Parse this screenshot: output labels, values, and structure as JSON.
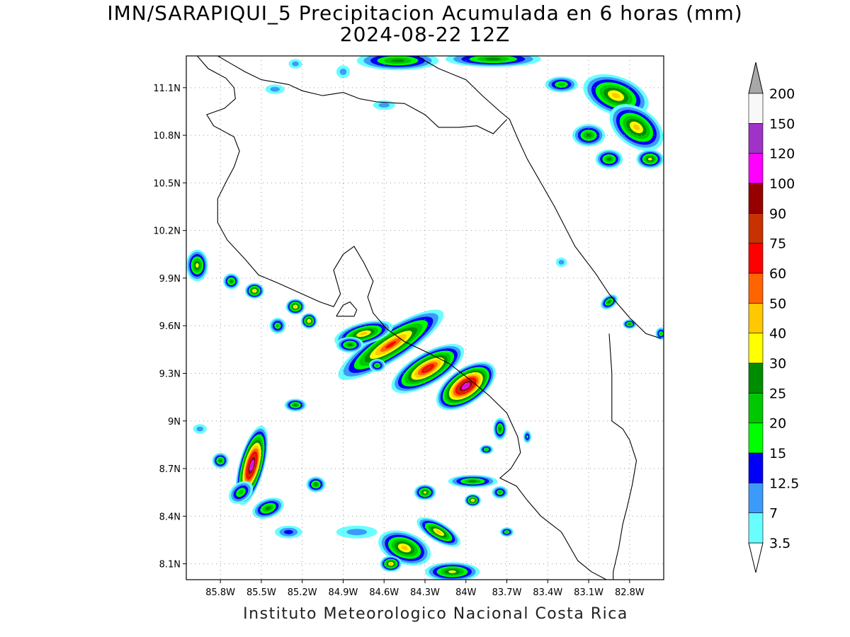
{
  "title": {
    "line1": "IMN/SARAPIQUI_5 Precipitacion Acumulada en 6 horas (mm)",
    "line2": "2024-08-22 12Z"
  },
  "footer": "Instituto Meteorologico Nacional Costa Rica",
  "map": {
    "lon_range": [
      -86.05,
      -82.55
    ],
    "lat_range": [
      8.0,
      11.3
    ],
    "lat_ticks": [
      {
        "value": 11.1,
        "label": "11.1N"
      },
      {
        "value": 10.8,
        "label": "10.8N"
      },
      {
        "value": 10.5,
        "label": "10.5N"
      },
      {
        "value": 10.2,
        "label": "10.2N"
      },
      {
        "value": 9.9,
        "label": "9.9N"
      },
      {
        "value": 9.6,
        "label": "9.6N"
      },
      {
        "value": 9.3,
        "label": "9.3N"
      },
      {
        "value": 9.0,
        "label": "9N"
      },
      {
        "value": 8.7,
        "label": "8.7N"
      },
      {
        "value": 8.4,
        "label": "8.4N"
      },
      {
        "value": 8.1,
        "label": "8.1N"
      }
    ],
    "lon_ticks": [
      {
        "value": -85.8,
        "label": "85.8W"
      },
      {
        "value": -85.5,
        "label": "85.5W"
      },
      {
        "value": -85.2,
        "label": "85.2W"
      },
      {
        "value": -84.9,
        "label": "84.9W"
      },
      {
        "value": -84.6,
        "label": "84.6W"
      },
      {
        "value": -84.3,
        "label": "84.3W"
      },
      {
        "value": -84.0,
        "label": "84W"
      },
      {
        "value": -83.7,
        "label": "83.7W"
      },
      {
        "value": -83.4,
        "label": "83.4W"
      },
      {
        "value": -83.1,
        "label": "83.1W"
      },
      {
        "value": -82.8,
        "label": "82.8W"
      }
    ],
    "coastline": [
      [
        [
          -85.97,
          11.3
        ],
        [
          -85.89,
          11.22
        ],
        [
          -85.76,
          11.16
        ],
        [
          -85.7,
          11.1
        ],
        [
          -85.69,
          11.03
        ],
        [
          -85.77,
          10.97
        ],
        [
          -85.9,
          10.93
        ],
        [
          -85.85,
          10.86
        ],
        [
          -85.7,
          10.79
        ],
        [
          -85.66,
          10.7
        ],
        [
          -85.7,
          10.6
        ],
        [
          -85.75,
          10.52
        ],
        [
          -85.82,
          10.4
        ],
        [
          -85.82,
          10.25
        ],
        [
          -85.75,
          10.14
        ],
        [
          -85.62,
          10.02
        ],
        [
          -85.52,
          9.92
        ],
        [
          -85.38,
          9.87
        ],
        [
          -85.2,
          9.8
        ],
        [
          -85.07,
          9.75
        ],
        [
          -84.97,
          9.72
        ],
        [
          -84.92,
          9.8
        ],
        [
          -84.97,
          9.95
        ],
        [
          -84.9,
          10.05
        ],
        [
          -84.82,
          10.1
        ],
        [
          -84.75,
          10.0
        ],
        [
          -84.68,
          9.88
        ],
        [
          -84.72,
          9.78
        ],
        [
          -84.68,
          9.68
        ],
        [
          -84.58,
          9.58
        ],
        [
          -84.45,
          9.5
        ],
        [
          -84.28,
          9.43
        ],
        [
          -84.12,
          9.36
        ],
        [
          -83.97,
          9.26
        ],
        [
          -83.83,
          9.16
        ],
        [
          -83.7,
          9.05
        ],
        [
          -83.62,
          8.9
        ],
        [
          -83.6,
          8.8
        ],
        [
          -83.67,
          8.7
        ],
        [
          -83.75,
          8.64
        ],
        [
          -83.63,
          8.59
        ],
        [
          -83.55,
          8.5
        ],
        [
          -83.45,
          8.4
        ],
        [
          -83.3,
          8.3
        ],
        [
          -83.18,
          8.12
        ],
        [
          -83.08,
          8.05
        ],
        [
          -82.97,
          8.0
        ]
      ],
      [
        [
          -84.36,
          11.3
        ],
        [
          -84.2,
          11.22
        ],
        [
          -84.0,
          11.15
        ],
        [
          -83.88,
          11.05
        ],
        [
          -83.75,
          10.95
        ],
        [
          -83.68,
          10.9
        ],
        [
          -83.62,
          10.78
        ],
        [
          -83.55,
          10.65
        ],
        [
          -83.45,
          10.5
        ],
        [
          -83.35,
          10.35
        ],
        [
          -83.2,
          10.1
        ],
        [
          -83.05,
          9.93
        ],
        [
          -82.95,
          9.8
        ],
        [
          -82.8,
          9.65
        ],
        [
          -82.68,
          9.55
        ],
        [
          -82.57,
          9.52
        ]
      ],
      [
        [
          -84.95,
          9.66
        ],
        [
          -84.9,
          9.73
        ],
        [
          -84.85,
          9.75
        ],
        [
          -84.8,
          9.7
        ],
        [
          -84.82,
          9.66
        ],
        [
          -84.95,
          9.66
        ]
      ],
      [
        [
          -85.82,
          11.3
        ],
        [
          -85.72,
          11.25
        ],
        [
          -85.62,
          11.2
        ],
        [
          -85.5,
          11.15
        ],
        [
          -85.3,
          11.12
        ],
        [
          -85.2,
          11.08
        ],
        [
          -85.05,
          11.05
        ],
        [
          -84.9,
          11.07
        ],
        [
          -84.78,
          11.03
        ],
        [
          -84.65,
          11.01
        ],
        [
          -84.45,
          11.0
        ],
        [
          -84.3,
          10.93
        ],
        [
          -84.2,
          10.85
        ],
        [
          -84.05,
          10.85
        ],
        [
          -83.92,
          10.86
        ],
        [
          -83.8,
          10.81
        ],
        [
          -83.7,
          10.9
        ]
      ],
      [
        [
          -82.95,
          9.55
        ],
        [
          -82.93,
          9.3
        ],
        [
          -82.93,
          9.1
        ],
        [
          -82.93,
          9.0
        ],
        [
          -82.85,
          8.95
        ],
        [
          -82.8,
          8.88
        ],
        [
          -82.75,
          8.75
        ],
        [
          -82.78,
          8.6
        ],
        [
          -82.82,
          8.45
        ],
        [
          -82.85,
          8.35
        ],
        [
          -82.88,
          8.2
        ],
        [
          -82.92,
          8.05
        ],
        [
          -82.92,
          8.0
        ]
      ]
    ],
    "precip_cells": [
      {
        "lon": -84.55,
        "lat": 9.48,
        "rx": 0.45,
        "ry": 0.1,
        "rot": 32,
        "max": 60
      },
      {
        "lon": -84.28,
        "lat": 9.33,
        "rx": 0.3,
        "ry": 0.1,
        "rot": 30,
        "max": 75
      },
      {
        "lon": -84.0,
        "lat": 9.22,
        "rx": 0.25,
        "ry": 0.11,
        "rot": 35,
        "max": 120
      },
      {
        "lon": -84.75,
        "lat": 9.55,
        "rx": 0.22,
        "ry": 0.07,
        "rot": 15,
        "max": 40
      },
      {
        "lon": -84.85,
        "lat": 9.48,
        "rx": 0.1,
        "ry": 0.05,
        "rot": 0,
        "max": 25
      },
      {
        "lon": -84.65,
        "lat": 9.35,
        "rx": 0.06,
        "ry": 0.04,
        "rot": 0,
        "max": 20
      },
      {
        "lon": -85.57,
        "lat": 8.72,
        "rx": 0.3,
        "ry": 0.08,
        "rot": 75,
        "max": 120
      },
      {
        "lon": -85.45,
        "lat": 8.45,
        "rx": 0.12,
        "ry": 0.06,
        "rot": 20,
        "max": 25
      },
      {
        "lon": -85.8,
        "lat": 8.75,
        "rx": 0.06,
        "ry": 0.05,
        "rot": 0,
        "max": 25
      },
      {
        "lon": -85.65,
        "lat": 8.55,
        "rx": 0.1,
        "ry": 0.06,
        "rot": 40,
        "max": 20
      },
      {
        "lon": -85.25,
        "lat": 9.1,
        "rx": 0.08,
        "ry": 0.04,
        "rot": 0,
        "max": 25
      },
      {
        "lon": -85.1,
        "lat": 8.6,
        "rx": 0.07,
        "ry": 0.05,
        "rot": 0,
        "max": 25
      },
      {
        "lon": -85.97,
        "lat": 9.98,
        "rx": 0.08,
        "ry": 0.1,
        "rot": 0,
        "max": 30
      },
      {
        "lon": -85.72,
        "lat": 9.88,
        "rx": 0.06,
        "ry": 0.05,
        "rot": 0,
        "max": 25
      },
      {
        "lon": -85.55,
        "lat": 9.82,
        "rx": 0.07,
        "ry": 0.05,
        "rot": 0,
        "max": 40
      },
      {
        "lon": -85.25,
        "lat": 9.72,
        "rx": 0.07,
        "ry": 0.05,
        "rot": 0,
        "max": 40
      },
      {
        "lon": -85.15,
        "lat": 9.63,
        "rx": 0.06,
        "ry": 0.05,
        "rot": 0,
        "max": 40
      },
      {
        "lon": -85.38,
        "lat": 9.6,
        "rx": 0.06,
        "ry": 0.05,
        "rot": 0,
        "max": 20
      },
      {
        "lon": -84.45,
        "lat": 8.2,
        "rx": 0.2,
        "ry": 0.1,
        "rot": -20,
        "max": 40
      },
      {
        "lon": -84.2,
        "lat": 8.3,
        "rx": 0.18,
        "ry": 0.06,
        "rot": -30,
        "max": 40
      },
      {
        "lon": -84.1,
        "lat": 8.05,
        "rx": 0.2,
        "ry": 0.06,
        "rot": 0,
        "max": 30
      },
      {
        "lon": -84.3,
        "lat": 8.55,
        "rx": 0.08,
        "ry": 0.05,
        "rot": 0,
        "max": 30
      },
      {
        "lon": -83.95,
        "lat": 8.62,
        "rx": 0.18,
        "ry": 0.04,
        "rot": 0,
        "max": 25
      },
      {
        "lon": -83.95,
        "lat": 8.5,
        "rx": 0.06,
        "ry": 0.04,
        "rot": 0,
        "max": 40
      },
      {
        "lon": -84.55,
        "lat": 8.1,
        "rx": 0.08,
        "ry": 0.05,
        "rot": 0,
        "max": 40
      },
      {
        "lon": -83.7,
        "lat": 8.3,
        "rx": 0.05,
        "ry": 0.03,
        "rot": 0,
        "max": 20
      },
      {
        "lon": -83.75,
        "lat": 8.55,
        "rx": 0.06,
        "ry": 0.04,
        "rot": 0,
        "max": 20
      },
      {
        "lon": -83.75,
        "lat": 8.95,
        "rx": 0.05,
        "ry": 0.07,
        "rot": 0,
        "max": 25
      },
      {
        "lon": -83.55,
        "lat": 8.9,
        "rx": 0.03,
        "ry": 0.04,
        "rot": 0,
        "max": 15
      },
      {
        "lon": -83.85,
        "lat": 8.82,
        "rx": 0.05,
        "ry": 0.03,
        "rot": 0,
        "max": 20
      },
      {
        "lon": -82.9,
        "lat": 11.05,
        "rx": 0.25,
        "ry": 0.12,
        "rot": -20,
        "max": 40
      },
      {
        "lon": -82.75,
        "lat": 10.85,
        "rx": 0.22,
        "ry": 0.12,
        "rot": -35,
        "max": 40
      },
      {
        "lon": -83.1,
        "lat": 10.8,
        "rx": 0.12,
        "ry": 0.07,
        "rot": 0,
        "max": 25
      },
      {
        "lon": -82.95,
        "lat": 10.65,
        "rx": 0.1,
        "ry": 0.06,
        "rot": 0,
        "max": 25
      },
      {
        "lon": -82.65,
        "lat": 10.65,
        "rx": 0.1,
        "ry": 0.06,
        "rot": 0,
        "max": 30
      },
      {
        "lon": -83.3,
        "lat": 11.12,
        "rx": 0.12,
        "ry": 0.05,
        "rot": 0,
        "max": 20
      },
      {
        "lon": -84.5,
        "lat": 11.27,
        "rx": 0.3,
        "ry": 0.06,
        "rot": 0,
        "max": 25
      },
      {
        "lon": -83.8,
        "lat": 11.28,
        "rx": 0.35,
        "ry": 0.05,
        "rot": 0,
        "max": 25
      },
      {
        "lon": -82.95,
        "lat": 9.75,
        "rx": 0.07,
        "ry": 0.04,
        "rot": 35,
        "max": 25
      },
      {
        "lon": -82.8,
        "lat": 9.61,
        "rx": 0.05,
        "ry": 0.03,
        "rot": 0,
        "max": 25
      },
      {
        "lon": -82.57,
        "lat": 9.55,
        "rx": 0.04,
        "ry": 0.04,
        "rot": 0,
        "max": 20
      },
      {
        "lon": -84.9,
        "lat": 11.2,
        "rx": 0.05,
        "ry": 0.04,
        "rot": 0,
        "max": 10
      },
      {
        "lon": -85.4,
        "lat": 11.09,
        "rx": 0.07,
        "ry": 0.03,
        "rot": 0,
        "max": 10
      },
      {
        "lon": -84.6,
        "lat": 10.99,
        "rx": 0.08,
        "ry": 0.03,
        "rot": 0,
        "max": 10
      },
      {
        "lon": -85.25,
        "lat": 11.25,
        "rx": 0.05,
        "ry": 0.03,
        "rot": 0,
        "max": 10
      },
      {
        "lon": -85.95,
        "lat": 8.95,
        "rx": 0.05,
        "ry": 0.03,
        "rot": 0,
        "max": 10
      },
      {
        "lon": -85.3,
        "lat": 8.3,
        "rx": 0.1,
        "ry": 0.04,
        "rot": 0,
        "max": 12.5
      },
      {
        "lon": -84.8,
        "lat": 8.3,
        "rx": 0.15,
        "ry": 0.04,
        "rot": 0,
        "max": 7
      },
      {
        "lon": -83.3,
        "lat": 10.0,
        "rx": 0.04,
        "ry": 0.03,
        "rot": 0,
        "max": 7
      }
    ]
  },
  "colorbar": {
    "colors": [
      "#68fefe",
      "#3c9bfa",
      "#0000f6",
      "#00ff00",
      "#00c800",
      "#008c00",
      "#ffff00",
      "#ffc800",
      "#ff6400",
      "#ff0000",
      "#c83200",
      "#960000",
      "#ff00ff",
      "#a032c8",
      "#f8f8f8"
    ],
    "thresholds": [
      3.5,
      7,
      12.5,
      15,
      20,
      25,
      30,
      40,
      50,
      60,
      75,
      90,
      100,
      120,
      150,
      200
    ],
    "labels": [
      "3.5",
      "7",
      "12.5",
      "15",
      "20",
      "25",
      "30",
      "40",
      "50",
      "60",
      "75",
      "90",
      "100",
      "120",
      "150",
      "200"
    ],
    "over_color": "#a8a8a8",
    "under_color": "#ffffff"
  }
}
